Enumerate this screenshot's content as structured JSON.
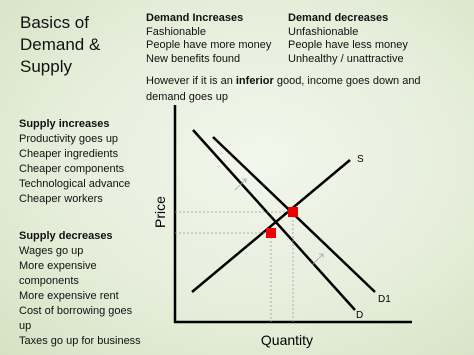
{
  "title": [
    "Basics of",
    "Demand &",
    "Supply"
  ],
  "demand_increases": {
    "heading": "Demand Increases",
    "items": [
      "Fashionable",
      "People have more money",
      "New benefits found"
    ]
  },
  "demand_decreases": {
    "heading": "Demand decreases",
    "items": [
      "Unfashionable",
      "People have less money",
      "Unhealthy / unattractive"
    ]
  },
  "note": {
    "before": "However if it is an ",
    "bold": "inferior",
    "after": " good, income goes down and demand goes up"
  },
  "supply_increases": {
    "heading": "Supply increases",
    "items": [
      "Productivity goes up",
      "Cheaper ingredients",
      "Cheaper components",
      "Technological advance",
      "Cheaper workers"
    ]
  },
  "supply_decreases": {
    "heading": "Supply decreases",
    "items": [
      "Wages go up",
      "More expensive components",
      "More expensive rent",
      "Cost of borrowing goes up",
      "Taxes go up for business"
    ]
  },
  "graph": {
    "y_label": "Price",
    "x_label": "Quantity",
    "supply": "S",
    "demand_new": "D1",
    "demand": "D"
  }
}
